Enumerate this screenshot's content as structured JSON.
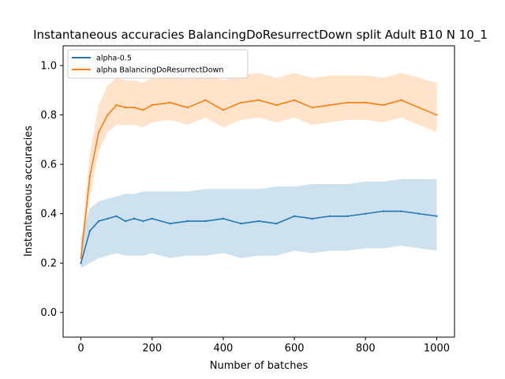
{
  "chart_data": {
    "type": "line",
    "title": "Instantaneous accuracies BalancingDoResurrectDown split Adult B10 N 10_1",
    "xlabel": "Number of batches",
    "ylabel": "Instantaneous accuracies",
    "xlim": [
      -50,
      1050
    ],
    "ylim": [
      -0.1,
      1.08
    ],
    "x_ticks": [
      0,
      200,
      400,
      600,
      800,
      1000
    ],
    "y_ticks": [
      0.0,
      0.2,
      0.4,
      0.6,
      0.8,
      1.0
    ],
    "x_tick_labels": [
      "0",
      "200",
      "400",
      "600",
      "800",
      "1000"
    ],
    "y_tick_labels": [
      "0.0",
      "0.2",
      "0.4",
      "0.6",
      "0.8",
      "1.0"
    ],
    "grid": false,
    "legend_position": "top-left",
    "x": [
      0,
      25,
      50,
      75,
      100,
      125,
      150,
      175,
      200,
      250,
      300,
      350,
      400,
      450,
      500,
      550,
      600,
      650,
      700,
      750,
      800,
      850,
      900,
      950,
      1000
    ],
    "series": [
      {
        "name": "alpha-0.5",
        "color": "#1f77b4",
        "values": [
          0.2,
          0.33,
          0.37,
          0.38,
          0.39,
          0.37,
          0.38,
          0.37,
          0.38,
          0.36,
          0.37,
          0.37,
          0.38,
          0.36,
          0.37,
          0.36,
          0.39,
          0.38,
          0.39,
          0.39,
          0.4,
          0.41,
          0.41,
          0.4,
          0.39
        ],
        "band_lower": [
          0.18,
          0.2,
          0.22,
          0.23,
          0.24,
          0.23,
          0.23,
          0.23,
          0.24,
          0.22,
          0.23,
          0.23,
          0.24,
          0.22,
          0.23,
          0.23,
          0.25,
          0.24,
          0.25,
          0.25,
          0.26,
          0.26,
          0.27,
          0.26,
          0.25
        ],
        "band_upper": [
          0.3,
          0.42,
          0.45,
          0.46,
          0.47,
          0.48,
          0.48,
          0.49,
          0.49,
          0.49,
          0.49,
          0.5,
          0.5,
          0.5,
          0.5,
          0.51,
          0.51,
          0.52,
          0.52,
          0.52,
          0.53,
          0.53,
          0.54,
          0.54,
          0.54
        ]
      },
      {
        "name": "alpha BalancingDoResurrectDown",
        "color": "#ff7f0e",
        "values": [
          0.22,
          0.55,
          0.73,
          0.8,
          0.84,
          0.83,
          0.83,
          0.82,
          0.84,
          0.85,
          0.83,
          0.86,
          0.82,
          0.85,
          0.86,
          0.84,
          0.86,
          0.83,
          0.84,
          0.85,
          0.85,
          0.84,
          0.86,
          0.83,
          0.8
        ],
        "band_lower": [
          0.2,
          0.47,
          0.65,
          0.73,
          0.76,
          0.76,
          0.76,
          0.75,
          0.77,
          0.78,
          0.76,
          0.79,
          0.75,
          0.78,
          0.79,
          0.77,
          0.79,
          0.76,
          0.77,
          0.78,
          0.78,
          0.77,
          0.79,
          0.76,
          0.73
        ],
        "band_upper": [
          0.26,
          0.64,
          0.84,
          0.92,
          0.95,
          0.94,
          0.94,
          0.93,
          0.95,
          0.96,
          0.95,
          0.97,
          0.94,
          0.96,
          0.97,
          0.95,
          0.97,
          0.95,
          0.96,
          0.96,
          0.96,
          0.95,
          0.97,
          0.95,
          0.93
        ]
      }
    ]
  }
}
